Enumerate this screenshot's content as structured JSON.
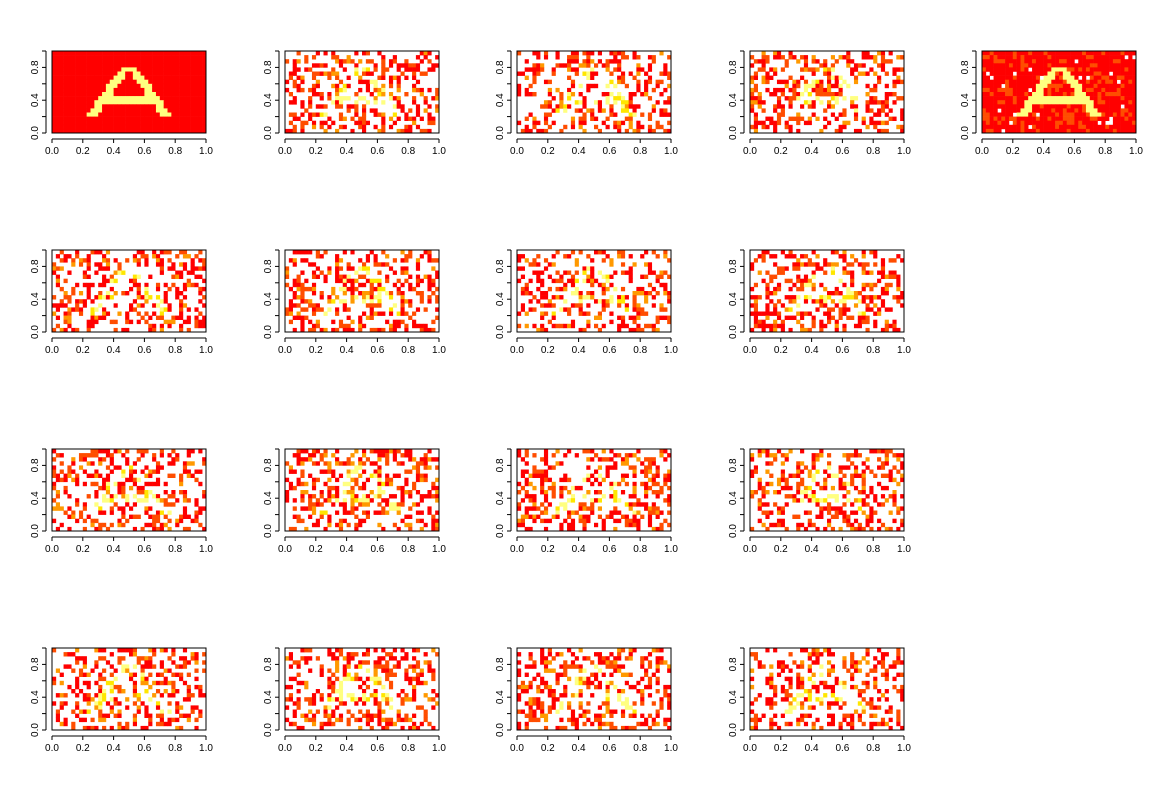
{
  "colors": {
    "background": "#ffffff",
    "axis": "#000000",
    "heat": [
      "#FF0000",
      "#FF4D00",
      "#FF9900",
      "#FFE600",
      "#FFFF80",
      "#FFFFFF"
    ]
  },
  "chart_data": {
    "type": "heatmap",
    "layout": {
      "rows": 4,
      "cols": 5
    },
    "xlim": [
      0,
      1
    ],
    "ylim": [
      0,
      1
    ],
    "grid": false,
    "x_ticks": [
      "0.0",
      "0.2",
      "0.4",
      "0.6",
      "0.8",
      "1.0"
    ],
    "y_ticks": [
      "0.0",
      "0.4",
      "0.8"
    ],
    "panels": [
      {
        "row": 0,
        "col": 0,
        "style": "clean"
      },
      {
        "row": 0,
        "col": 1,
        "style": "noisy"
      },
      {
        "row": 0,
        "col": 2,
        "style": "noisy"
      },
      {
        "row": 0,
        "col": 3,
        "style": "noisy"
      },
      {
        "row": 0,
        "col": 4,
        "style": "mean"
      },
      {
        "row": 1,
        "col": 0,
        "style": "noisy"
      },
      {
        "row": 1,
        "col": 1,
        "style": "noisy"
      },
      {
        "row": 1,
        "col": 2,
        "style": "noisy"
      },
      {
        "row": 1,
        "col": 3,
        "style": "noisy"
      },
      {
        "row": 2,
        "col": 0,
        "style": "noisy"
      },
      {
        "row": 2,
        "col": 1,
        "style": "noisy"
      },
      {
        "row": 2,
        "col": 2,
        "style": "noisy"
      },
      {
        "row": 2,
        "col": 3,
        "style": "noisy"
      },
      {
        "row": 3,
        "col": 0,
        "style": "noisy"
      },
      {
        "row": 3,
        "col": 1,
        "style": "noisy"
      },
      {
        "row": 3,
        "col": 2,
        "style": "noisy"
      },
      {
        "row": 3,
        "col": 3,
        "style": "noisy"
      }
    ]
  }
}
